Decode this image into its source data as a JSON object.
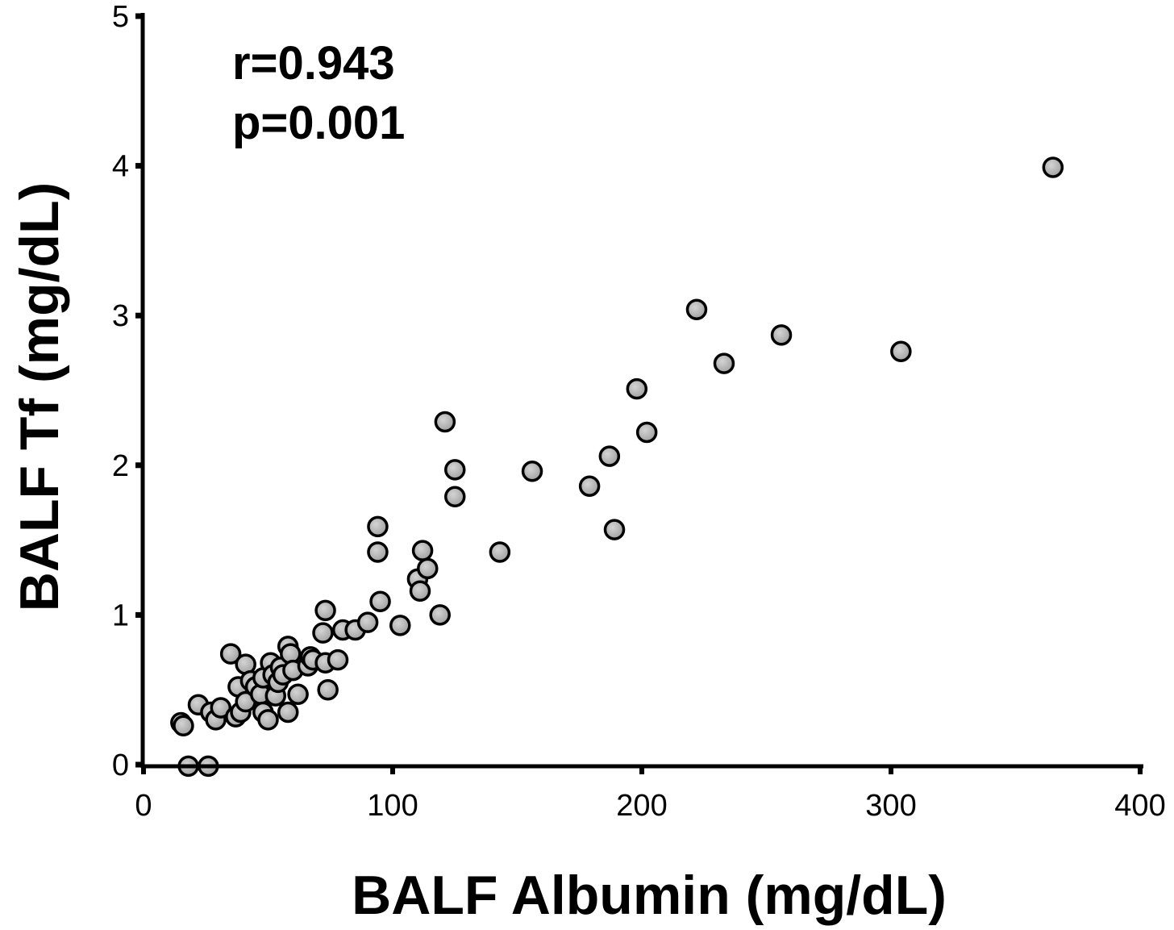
{
  "chart_data": {
    "type": "scatter",
    "title": "",
    "xlabel": "BALF Albumin (mg/dL)",
    "ylabel": "BALF Tf (mg/dL)",
    "xlim": [
      0,
      400
    ],
    "ylim": [
      0,
      5
    ],
    "xticks": [
      "0",
      "100",
      "200",
      "300",
      "400"
    ],
    "yticks": [
      "0",
      "1",
      "2",
      "3",
      "4",
      "5"
    ],
    "grid": false,
    "legend": "none",
    "annotations": [
      "r=0.943",
      "p=0.001"
    ],
    "marker_color": "#a0a0a0",
    "marker_edge_color": "#000000",
    "points": [
      {
        "x": 15,
        "y": 0.28
      },
      {
        "x": 16,
        "y": 0.26
      },
      {
        "x": 18,
        "y": -0.01
      },
      {
        "x": 22,
        "y": 0.4
      },
      {
        "x": 26,
        "y": -0.01
      },
      {
        "x": 27,
        "y": 0.35
      },
      {
        "x": 29,
        "y": 0.3
      },
      {
        "x": 31,
        "y": 0.38
      },
      {
        "x": 35,
        "y": 0.74
      },
      {
        "x": 37,
        "y": 0.32
      },
      {
        "x": 38,
        "y": 0.52
      },
      {
        "x": 39,
        "y": 0.35
      },
      {
        "x": 41,
        "y": 0.67
      },
      {
        "x": 41,
        "y": 0.42
      },
      {
        "x": 43,
        "y": 0.56
      },
      {
        "x": 45,
        "y": 0.52
      },
      {
        "x": 47,
        "y": 0.47
      },
      {
        "x": 48,
        "y": 0.35
      },
      {
        "x": 48,
        "y": 0.58
      },
      {
        "x": 50,
        "y": 0.3
      },
      {
        "x": 51,
        "y": 0.68
      },
      {
        "x": 52,
        "y": 0.6
      },
      {
        "x": 53,
        "y": 0.46
      },
      {
        "x": 54,
        "y": 0.55
      },
      {
        "x": 55,
        "y": 0.65
      },
      {
        "x": 56,
        "y": 0.6
      },
      {
        "x": 58,
        "y": 0.35
      },
      {
        "x": 58,
        "y": 0.79
      },
      {
        "x": 59,
        "y": 0.74
      },
      {
        "x": 60,
        "y": 0.63
      },
      {
        "x": 62,
        "y": 0.47
      },
      {
        "x": 66,
        "y": 0.66
      },
      {
        "x": 67,
        "y": 0.72
      },
      {
        "x": 68,
        "y": 0.7
      },
      {
        "x": 72,
        "y": 0.88
      },
      {
        "x": 73,
        "y": 0.68
      },
      {
        "x": 73,
        "y": 1.03
      },
      {
        "x": 74,
        "y": 0.5
      },
      {
        "x": 78,
        "y": 0.7
      },
      {
        "x": 80,
        "y": 0.9
      },
      {
        "x": 85,
        "y": 0.9
      },
      {
        "x": 90,
        "y": 0.95
      },
      {
        "x": 94,
        "y": 1.59
      },
      {
        "x": 94,
        "y": 1.42
      },
      {
        "x": 95,
        "y": 1.09
      },
      {
        "x": 103,
        "y": 0.93
      },
      {
        "x": 110,
        "y": 1.24
      },
      {
        "x": 111,
        "y": 1.16
      },
      {
        "x": 112,
        "y": 1.43
      },
      {
        "x": 114,
        "y": 1.31
      },
      {
        "x": 119,
        "y": 1.0
      },
      {
        "x": 121,
        "y": 2.29
      },
      {
        "x": 125,
        "y": 1.97
      },
      {
        "x": 125,
        "y": 1.79
      },
      {
        "x": 143,
        "y": 1.42
      },
      {
        "x": 156,
        "y": 1.96
      },
      {
        "x": 179,
        "y": 1.86
      },
      {
        "x": 187,
        "y": 2.06
      },
      {
        "x": 189,
        "y": 1.57
      },
      {
        "x": 198,
        "y": 2.51
      },
      {
        "x": 202,
        "y": 2.22
      },
      {
        "x": 222,
        "y": 3.04
      },
      {
        "x": 233,
        "y": 2.68
      },
      {
        "x": 256,
        "y": 2.87
      },
      {
        "x": 304,
        "y": 2.76
      },
      {
        "x": 365,
        "y": 3.99
      }
    ]
  }
}
